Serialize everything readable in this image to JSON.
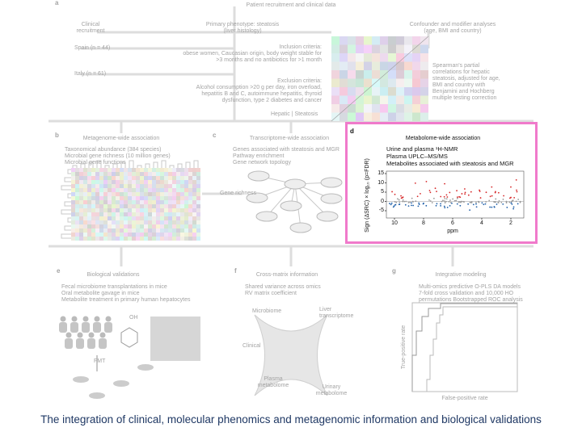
{
  "figure": {
    "panel_a": {
      "label": "a",
      "title": "Patient recruitment and clinical data",
      "recruitment": [
        "Clinical",
        "recruitment"
      ],
      "spain": "Spain (n = 44)",
      "italy": "Italy (n = 61)",
      "phenotype": [
        "Primary phenotype: steatosis",
        "(liver histology)"
      ],
      "inclusion": [
        "Inclusion criteria:",
        "obese women, Caucasian origin, body weight stable for",
        ">3 months and no antibiotics for >1 month"
      ],
      "exclusion": [
        "Exclusion criteria:",
        "Alcohol consumption >20 g per day, iron overload,",
        "hepatitis B and C, autoimmune hepatitis, thyroid",
        "dysfunction, type 2 diabetes and cancer"
      ],
      "confounder": [
        "Confounder and modifier analyses",
        "(age, BMI and country)"
      ],
      "spearman": [
        "Spearman's partial",
        "correlations for hepatic",
        "steatosis, adjusted for age,",
        "BMI and country with",
        "Benjamini and Hochberg",
        "multiple testing correction"
      ],
      "hepatic": "Hepatic | Steatosis"
    },
    "panel_b": {
      "label": "b",
      "title": "Metagenome-wide association",
      "lines": [
        "Taxonomical abundance (384 species)",
        "Microbial gene richness (10 million genes)",
        "Microbial gene functions"
      ]
    },
    "panel_c": {
      "label": "c",
      "title": "Transcriptome-wide association",
      "lines": [
        "Genes associated with steatosis and MGR",
        "Pathway enrichment",
        "Gene network topology"
      ],
      "gene_richness": "Gene richness"
    },
    "panel_d": {
      "label": "d",
      "title": "Metabolome-wide association",
      "lines": [
        "Urine and plasma ¹H-NMR",
        "Plasma UPLC–MS/MS",
        "Metabolites associated with steatosis and MGR"
      ],
      "y_label": "Sign (ΔSRC) × log₁₀ (p=FDR)",
      "y_tick_labels": [
        "15",
        "10",
        "5",
        "0",
        "-5"
      ],
      "x_tick_labels": [
        "10",
        "8",
        "6",
        "4",
        "2"
      ],
      "x_label": "ppm"
    },
    "panel_e": {
      "label": "e",
      "title": "Biological validations",
      "lines": [
        "Fecal microbiome transplantations in mice",
        "Oral metabolite gavage in mice",
        "Metabolite treatment in primary human hepatocytes"
      ],
      "fmt": "FMT",
      "oh": "OH"
    },
    "panel_f": {
      "label": "f",
      "title": "Cross-matrix information",
      "lines": [
        "Shared variance across omics",
        "RV matrix coefficient"
      ],
      "microbiome": "Microbiome",
      "liver": [
        "Liver",
        "transcriptome"
      ],
      "clinical": "Clinical",
      "plasma": [
        "Plasma",
        "metabolome"
      ],
      "urinary": [
        "Urinary",
        "metabolome"
      ]
    },
    "panel_g": {
      "label": "g",
      "title": "Integrative modeling",
      "lines": [
        "Multi-omics predictive O-PLS DA models",
        "7-fold cross validation and 10,000 HO",
        "permutations Bootstrapped ROC analysis"
      ],
      "y_label": "True-positive rate",
      "x_label": "False-positive rate"
    }
  },
  "caption": "The integration of clinical, molecular phenomics and metagenomic information and biological validations"
}
